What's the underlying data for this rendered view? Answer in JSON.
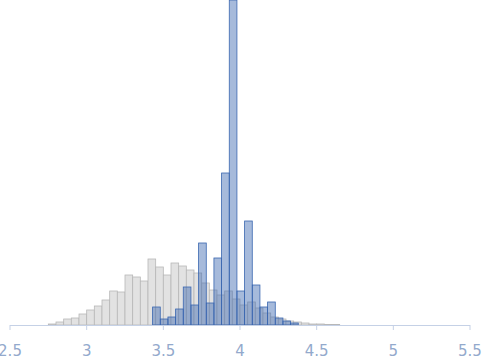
{
  "chart_data": {
    "type": "histogram",
    "xlim": [
      2.5,
      5.5
    ],
    "xticks": [
      2.5,
      3,
      3.5,
      4,
      4.5,
      5,
      5.5
    ],
    "ylim": [
      0,
      325
    ],
    "tick_labels": "x",
    "grid": false,
    "series": [
      {
        "color": "#e2e2e2",
        "bins": [
          2.75,
          2.8,
          2.85,
          2.9,
          2.95,
          3.0,
          3.05,
          3.1,
          3.15,
          3.2,
          3.25,
          3.3,
          3.35,
          3.4,
          3.45,
          3.5,
          3.55,
          3.6,
          3.65,
          3.7,
          3.75,
          3.8,
          3.85,
          3.9,
          3.95,
          4.0,
          4.05,
          4.1,
          4.15,
          4.2,
          4.25,
          4.3,
          4.35,
          4.4,
          4.45,
          4.5,
          4.55,
          4.6,
          4.65
        ],
        "values": [
          1,
          3,
          6,
          7,
          11,
          15,
          19,
          25,
          34,
          33,
          50,
          48,
          44,
          66,
          58,
          50,
          62,
          59,
          55,
          52,
          42,
          35,
          30,
          34,
          26,
          20,
          23,
          17,
          12,
          8,
          6,
          4,
          3,
          2,
          1,
          1,
          0.5,
          0.5
        ]
      },
      {
        "color": "#3a66b0",
        "bins": [
          3.43,
          3.48,
          3.53,
          3.58,
          3.63,
          3.68,
          3.73,
          3.78,
          3.83,
          3.88,
          3.93,
          3.98,
          4.03,
          4.08,
          4.13,
          4.18,
          4.23,
          4.28,
          4.33,
          4.38
        ],
        "values": [
          18,
          6,
          8,
          16,
          38,
          20,
          82,
          22,
          67,
          152,
          325,
          34,
          104,
          40,
          18,
          23,
          7,
          4,
          2
        ]
      }
    ]
  }
}
